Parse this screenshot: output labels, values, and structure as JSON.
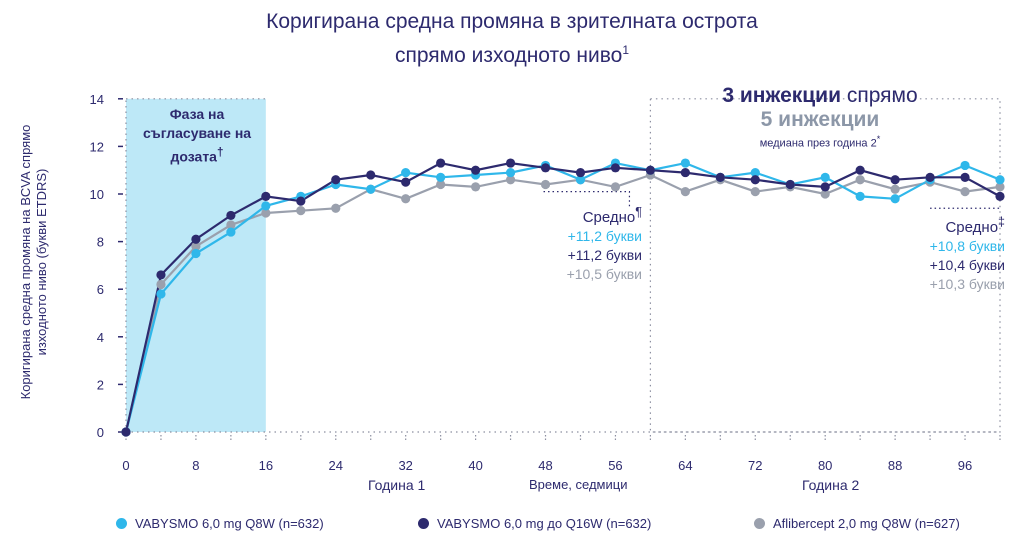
{
  "title_line1": "Коригирана средна промяна в зрителната острота",
  "title_line2": "спрямо изходното ниво",
  "title_sup": "1",
  "chart_data": {
    "type": "line",
    "ylabel_line1": "Коригирана средна промяна на BCVA спрямо",
    "ylabel_line2": "изходното ниво (букви ETDRS)",
    "xlabel": "Време, седмици",
    "year1_label": "Година 1",
    "year2_label": "Година 2",
    "ylim": [
      0,
      14
    ],
    "xlim": [
      0,
      100
    ],
    "yticks": [
      0,
      2,
      4,
      6,
      8,
      10,
      12,
      14
    ],
    "xticks": [
      0,
      8,
      16,
      24,
      32,
      40,
      48,
      56,
      64,
      72,
      80,
      88,
      96
    ],
    "x": [
      0,
      4,
      8,
      12,
      16,
      20,
      24,
      28,
      32,
      36,
      40,
      44,
      48,
      52,
      56,
      60,
      64,
      68,
      72,
      76,
      80,
      84,
      88,
      92,
      96,
      100
    ],
    "series": [
      {
        "name": "VABYSMO 6,0 mg Q8W (n=632)",
        "color": "#2fb7ea",
        "values": [
          0,
          5.8,
          7.5,
          8.4,
          9.5,
          9.9,
          10.4,
          10.2,
          10.9,
          10.7,
          10.8,
          10.9,
          11.2,
          10.6,
          11.3,
          11.0,
          11.3,
          10.7,
          10.9,
          10.4,
          10.7,
          9.9,
          9.8,
          10.6,
          11.2,
          10.6
        ]
      },
      {
        "name": "VABYSMO 6,0 mg до Q16W (n=632)",
        "color": "#2d2a6e",
        "values": [
          0,
          6.6,
          8.1,
          9.1,
          9.9,
          9.7,
          10.6,
          10.8,
          10.5,
          11.3,
          11.0,
          11.3,
          11.1,
          10.9,
          11.1,
          11.0,
          10.9,
          10.7,
          10.6,
          10.4,
          10.3,
          11.0,
          10.6,
          10.7,
          10.7,
          9.9
        ]
      },
      {
        "name": "Aflibercept 2,0 mg Q8W (n=627)",
        "color": "#9aa0ad",
        "values": [
          0,
          6.2,
          7.8,
          8.7,
          9.2,
          9.3,
          9.4,
          10.2,
          9.8,
          10.4,
          10.3,
          10.6,
          10.4,
          10.6,
          10.3,
          10.8,
          10.1,
          10.6,
          10.1,
          10.3,
          10.0,
          10.6,
          10.2,
          10.5,
          10.1,
          10.3
        ]
      }
    ],
    "phase_label": "Фаза на съгласуване на дозата",
    "phase_sup": "†",
    "injections": {
      "line1_bold": "3 инжекции",
      "line1_rest": "спрямо",
      "line2": "5 инжекции",
      "line3": "медиана през година 2",
      "line3_sup": "*"
    },
    "mean_year1": {
      "title": "Средно",
      "sup": "¶",
      "values": [
        "+11,2 букви",
        "+11,2 букви",
        "+10,5 букви"
      ]
    },
    "mean_year2": {
      "title": "Средно",
      "sup": "‡",
      "values": [
        "+10,8 букви",
        "+10,4 букви",
        "+10,3 букви"
      ]
    }
  },
  "legend": [
    {
      "label": "VABYSMO 6,0 mg Q8W (n=632)",
      "color": "#2fb7ea"
    },
    {
      "label": "VABYSMO 6,0 mg до Q16W (n=632)",
      "color": "#2d2a6e"
    },
    {
      "label": "Aflibercept 2,0 mg Q8W (n=627)",
      "color": "#9aa0ad"
    }
  ]
}
